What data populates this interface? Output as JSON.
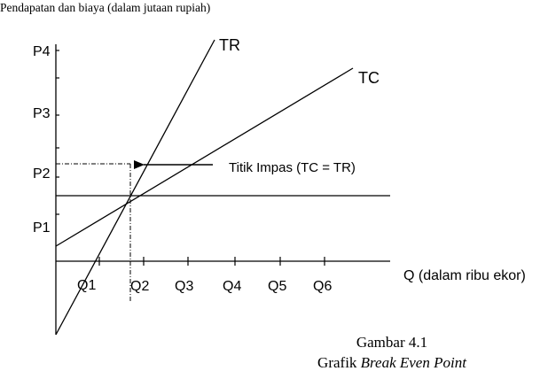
{
  "header": {
    "ylabel": "Pendapatan dan biaya (dalam jutaan rupiah)"
  },
  "axes": {
    "y_ticks": [
      "P1",
      "P2",
      "P3",
      "P4"
    ],
    "x_ticks": [
      "Q1",
      "Q2",
      "Q3",
      "Q4",
      "Q5",
      "Q6"
    ],
    "xlabel": "Q (dalam ribu ekor)"
  },
  "lines": {
    "tr": "TR",
    "tc": "TC"
  },
  "annotation": {
    "label": "Titik Impas (TC = TR)"
  },
  "caption": {
    "line1": "Gambar 4.1",
    "line2_prefix": "Grafik ",
    "line2_italic": "Break Even Point"
  },
  "colors": {
    "ink": "#000000",
    "background": "#ffffff"
  }
}
